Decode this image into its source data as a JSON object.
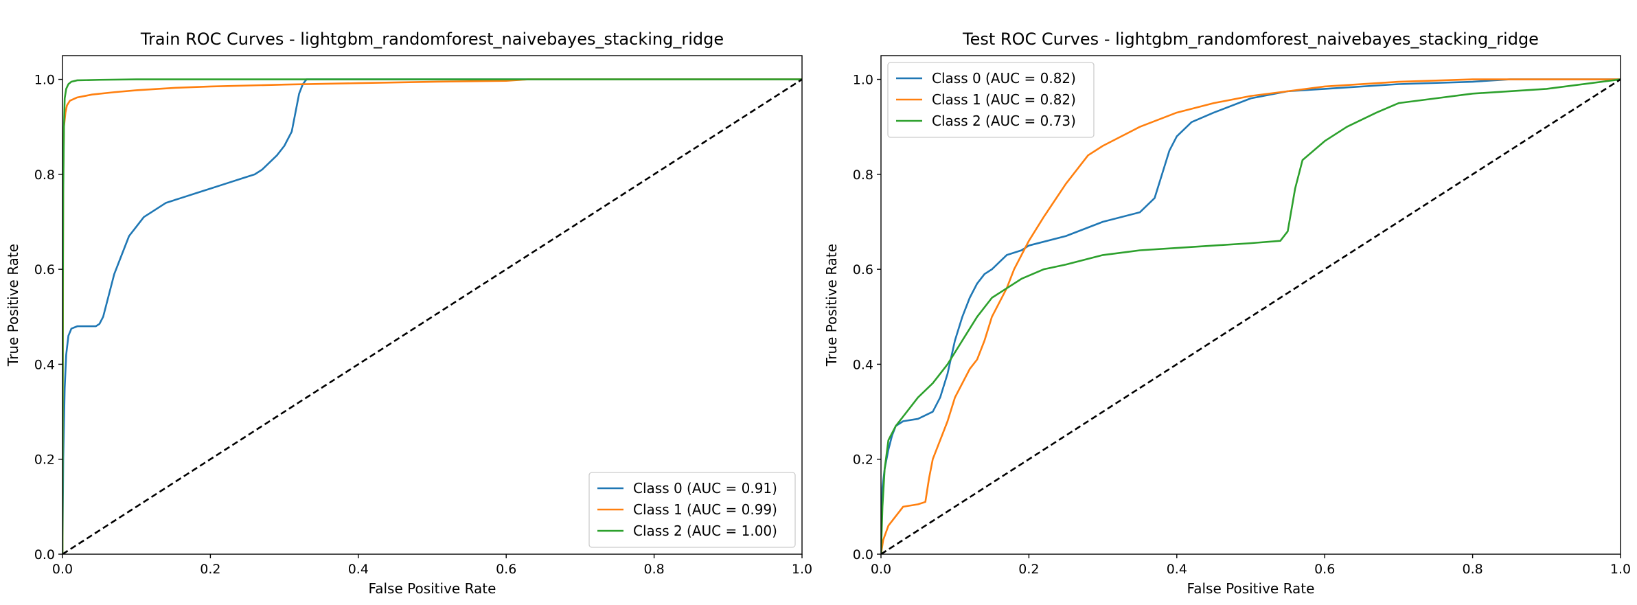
{
  "chart_data": [
    {
      "type": "line",
      "title": "Train ROC Curves - lightgbm_randomforest_naivebayes_stacking_ridge",
      "xlabel": "False Positive Rate",
      "ylabel": "True Positive Rate",
      "xlim": [
        0,
        1.0
      ],
      "ylim": [
        0,
        1.05
      ],
      "xticks": [
        "0.0",
        "0.2",
        "0.4",
        "0.6",
        "0.8",
        "1.0"
      ],
      "yticks": [
        "0.0",
        "0.2",
        "0.4",
        "0.6",
        "0.8",
        "1.0"
      ],
      "grid": false,
      "legend_position": "lower-right",
      "series": [
        {
          "name": "Class 0 (AUC = 0.91)",
          "color": "#1f77b4",
          "x": [
            0,
            0.001,
            0.003,
            0.005,
            0.008,
            0.012,
            0.02,
            0.03,
            0.045,
            0.05,
            0.055,
            0.06,
            0.065,
            0.07,
            0.08,
            0.09,
            0.1,
            0.11,
            0.12,
            0.14,
            0.16,
            0.18,
            0.2,
            0.22,
            0.24,
            0.26,
            0.27,
            0.28,
            0.29,
            0.3,
            0.31,
            0.315,
            0.32,
            0.325,
            0.33,
            0.34,
            0.4,
            0.6,
            0.8,
            1.0
          ],
          "y": [
            0,
            0.2,
            0.35,
            0.42,
            0.46,
            0.475,
            0.48,
            0.48,
            0.48,
            0.485,
            0.5,
            0.53,
            0.56,
            0.59,
            0.63,
            0.67,
            0.69,
            0.71,
            0.72,
            0.74,
            0.75,
            0.76,
            0.77,
            0.78,
            0.79,
            0.8,
            0.81,
            0.825,
            0.84,
            0.86,
            0.89,
            0.93,
            0.97,
            0.99,
            1.0,
            1.0,
            1.0,
            1.0,
            1.0,
            1.0
          ]
        },
        {
          "name": "Class 1 (AUC = 0.99)",
          "color": "#ff7f0e",
          "x": [
            0,
            0.001,
            0.002,
            0.004,
            0.006,
            0.01,
            0.02,
            0.04,
            0.07,
            0.1,
            0.15,
            0.2,
            0.3,
            0.4,
            0.5,
            0.6,
            0.63,
            0.7,
            0.8,
            1.0
          ],
          "y": [
            0,
            0.8,
            0.9,
            0.93,
            0.945,
            0.955,
            0.962,
            0.968,
            0.973,
            0.977,
            0.982,
            0.985,
            0.989,
            0.992,
            0.995,
            0.997,
            1.0,
            1.0,
            1.0,
            1.0
          ],
          "linestyle": "solid"
        },
        {
          "name": "Class 2 (AUC = 1.00)",
          "color": "#2ca02c",
          "x": [
            0,
            0.0005,
            0.001,
            0.002,
            0.003,
            0.005,
            0.008,
            0.012,
            0.02,
            0.05,
            0.1,
            0.5,
            1.0
          ],
          "y": [
            0,
            0.55,
            0.76,
            0.9,
            0.96,
            0.98,
            0.99,
            0.995,
            0.998,
            0.999,
            1.0,
            1.0,
            1.0
          ]
        },
        {
          "name": "",
          "color": "#000000",
          "dashed": true,
          "x": [
            0,
            1
          ],
          "y": [
            0,
            1
          ]
        }
      ]
    },
    {
      "type": "line",
      "title": "Test ROC Curves - lightgbm_randomforest_naivebayes_stacking_ridge",
      "xlabel": "False Positive Rate",
      "ylabel": "True Positive Rate",
      "xlim": [
        0,
        1.0
      ],
      "ylim": [
        0,
        1.05
      ],
      "xticks": [
        "0.0",
        "0.2",
        "0.4",
        "0.6",
        "0.8",
        "1.0"
      ],
      "yticks": [
        "0.0",
        "0.2",
        "0.4",
        "0.6",
        "0.8",
        "1.0"
      ],
      "grid": false,
      "legend_position": "upper-left",
      "series": [
        {
          "name": "Class 0 (AUC = 0.82)",
          "color": "#1f77b4",
          "x": [
            0,
            0.002,
            0.005,
            0.01,
            0.015,
            0.02,
            0.03,
            0.05,
            0.07,
            0.08,
            0.09,
            0.1,
            0.11,
            0.12,
            0.13,
            0.14,
            0.15,
            0.17,
            0.19,
            0.2,
            0.25,
            0.3,
            0.35,
            0.37,
            0.38,
            0.39,
            0.4,
            0.42,
            0.45,
            0.5,
            0.55,
            0.6,
            0.7,
            0.8,
            0.85,
            1.0
          ],
          "y": [
            0,
            0.14,
            0.18,
            0.22,
            0.25,
            0.27,
            0.28,
            0.285,
            0.3,
            0.33,
            0.38,
            0.45,
            0.5,
            0.54,
            0.57,
            0.59,
            0.6,
            0.63,
            0.64,
            0.65,
            0.67,
            0.7,
            0.72,
            0.75,
            0.8,
            0.85,
            0.88,
            0.91,
            0.93,
            0.96,
            0.975,
            0.98,
            0.99,
            0.995,
            1.0,
            1.0
          ]
        },
        {
          "name": "Class 1 (AUC = 0.82)",
          "color": "#ff7f0e",
          "x": [
            0,
            0.003,
            0.01,
            0.02,
            0.03,
            0.05,
            0.06,
            0.065,
            0.07,
            0.08,
            0.09,
            0.1,
            0.11,
            0.12,
            0.13,
            0.14,
            0.15,
            0.16,
            0.17,
            0.18,
            0.2,
            0.22,
            0.25,
            0.28,
            0.3,
            0.35,
            0.4,
            0.45,
            0.5,
            0.55,
            0.6,
            0.7,
            0.8,
            1.0
          ],
          "y": [
            0,
            0.03,
            0.06,
            0.08,
            0.1,
            0.105,
            0.11,
            0.16,
            0.2,
            0.24,
            0.28,
            0.33,
            0.36,
            0.39,
            0.41,
            0.45,
            0.5,
            0.53,
            0.56,
            0.6,
            0.66,
            0.71,
            0.78,
            0.84,
            0.86,
            0.9,
            0.93,
            0.95,
            0.965,
            0.975,
            0.985,
            0.995,
            1.0,
            1.0
          ]
        },
        {
          "name": "Class 2 (AUC = 0.73)",
          "color": "#2ca02c",
          "x": [
            0,
            0.002,
            0.005,
            0.01,
            0.02,
            0.03,
            0.05,
            0.07,
            0.09,
            0.11,
            0.13,
            0.15,
            0.17,
            0.19,
            0.22,
            0.25,
            0.3,
            0.35,
            0.4,
            0.45,
            0.5,
            0.54,
            0.55,
            0.56,
            0.57,
            0.6,
            0.63,
            0.67,
            0.7,
            0.75,
            0.8,
            0.9,
            1.0
          ],
          "y": [
            0,
            0.1,
            0.18,
            0.24,
            0.27,
            0.29,
            0.33,
            0.36,
            0.4,
            0.45,
            0.5,
            0.54,
            0.56,
            0.58,
            0.6,
            0.61,
            0.63,
            0.64,
            0.645,
            0.65,
            0.655,
            0.66,
            0.68,
            0.77,
            0.83,
            0.87,
            0.9,
            0.93,
            0.95,
            0.96,
            0.97,
            0.98,
            1.0
          ]
        },
        {
          "name": "",
          "color": "#000000",
          "dashed": true,
          "x": [
            0,
            1
          ],
          "y": [
            0,
            1
          ]
        }
      ]
    }
  ]
}
